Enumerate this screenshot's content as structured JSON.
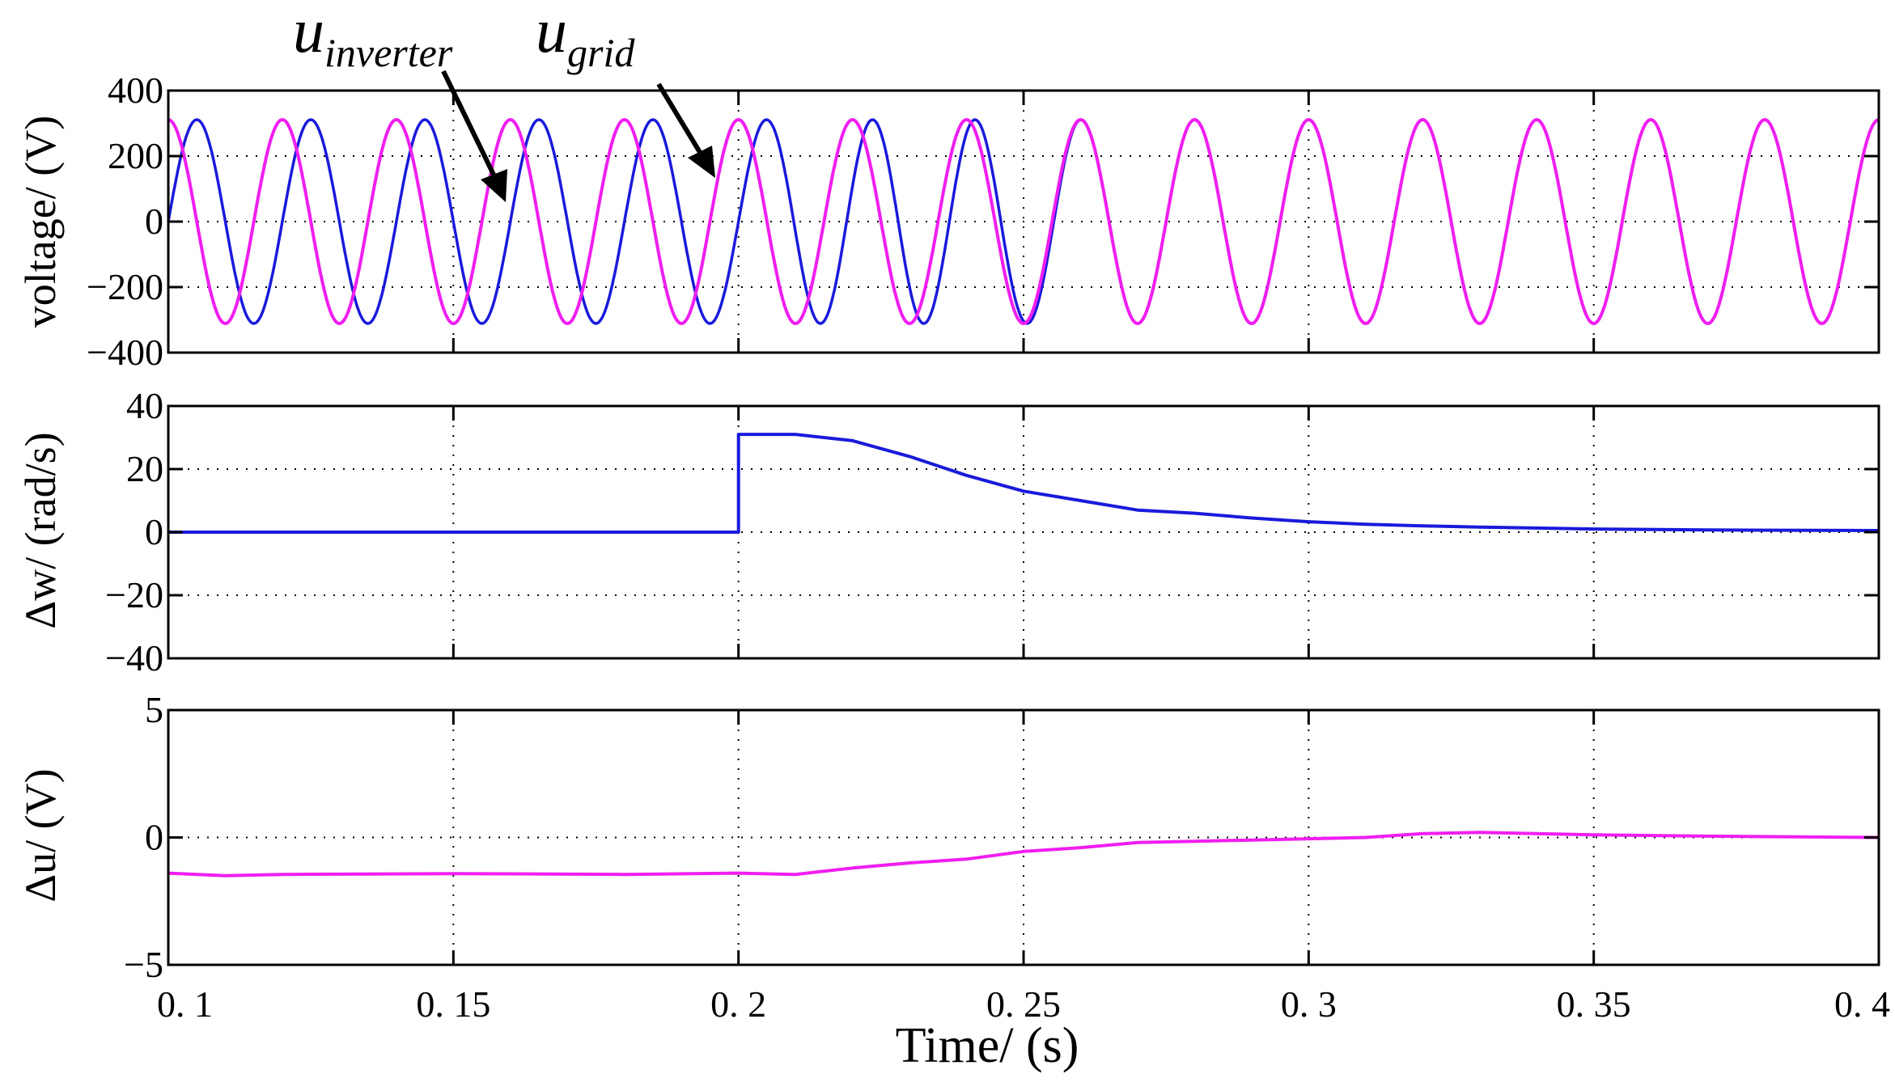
{
  "figure": {
    "xlabel": "Time/ (s)",
    "xlim": [
      0.1,
      0.4
    ],
    "xticks": [
      0.1,
      0.15,
      0.2,
      0.25,
      0.3,
      0.35,
      0.4
    ],
    "xtick_labels": [
      "0. 1",
      "0. 15",
      "0. 2",
      "0. 25",
      "0. 3",
      "0. 35",
      "0. 4"
    ],
    "colors": {
      "inverter": "#1a1adc",
      "grid": "#f01ef0",
      "dw": "#1a1adc",
      "du": "#f01ef0",
      "axes": "#000000"
    }
  },
  "annotations": {
    "inverter": {
      "base": "u",
      "sub": "inverter"
    },
    "grid": {
      "base": "u",
      "sub": "grid"
    }
  },
  "chart_data": [
    {
      "type": "line",
      "ylabel": "voltage/ (V)",
      "ylim": [
        -400,
        400
      ],
      "yticks": [
        -400,
        -200,
        0,
        200,
        400
      ],
      "ytick_labels": [
        "−400",
        "−200",
        "0",
        "200",
        "400"
      ],
      "grid": true,
      "series": [
        {
          "name": "u_inverter",
          "amplitude": 311,
          "frequency_hz": 50,
          "phase_deg_before_sync": 0,
          "sync_start_s": 0.2,
          "sync_end_s": 0.265,
          "color_key": "inverter"
        },
        {
          "name": "u_grid",
          "amplitude": 311,
          "frequency_hz": 50,
          "phase_deg": 90,
          "color_key": "grid"
        }
      ]
    },
    {
      "type": "line",
      "ylabel": "Δw/ (rad/s)",
      "ylim": [
        -40,
        40
      ],
      "yticks": [
        -40,
        -20,
        0,
        20,
        40
      ],
      "ytick_labels": [
        "−40",
        "−20",
        "0",
        "20",
        "40"
      ],
      "grid": true,
      "series": [
        {
          "name": "delta_w",
          "color_key": "dw",
          "x": [
            0.1,
            0.2,
            0.2,
            0.21,
            0.22,
            0.23,
            0.24,
            0.25,
            0.26,
            0.27,
            0.28,
            0.29,
            0.3,
            0.31,
            0.32,
            0.33,
            0.35,
            0.37,
            0.4
          ],
          "y": [
            0,
            0,
            31,
            31,
            29,
            24,
            18,
            13,
            10,
            7,
            6,
            4.5,
            3.3,
            2.5,
            2,
            1.6,
            1,
            0.7,
            0.5
          ]
        }
      ]
    },
    {
      "type": "line",
      "ylabel": "Δu/ (V)",
      "ylim": [
        -5,
        5
      ],
      "yticks": [
        -5,
        0,
        5
      ],
      "ytick_labels": [
        "−5",
        "0",
        "5"
      ],
      "grid": true,
      "series": [
        {
          "name": "delta_u",
          "color_key": "du",
          "x": [
            0.1,
            0.11,
            0.12,
            0.15,
            0.18,
            0.2,
            0.21,
            0.22,
            0.23,
            0.24,
            0.25,
            0.26,
            0.27,
            0.28,
            0.29,
            0.3,
            0.31,
            0.32,
            0.33,
            0.34,
            0.35,
            0.37,
            0.4
          ],
          "y": [
            -1.4,
            -1.5,
            -1.45,
            -1.42,
            -1.45,
            -1.4,
            -1.45,
            -1.2,
            -1.0,
            -0.85,
            -0.55,
            -0.4,
            -0.2,
            -0.15,
            -0.1,
            -0.05,
            0.0,
            0.15,
            0.2,
            0.15,
            0.1,
            0.05,
            0.0
          ]
        }
      ]
    }
  ]
}
